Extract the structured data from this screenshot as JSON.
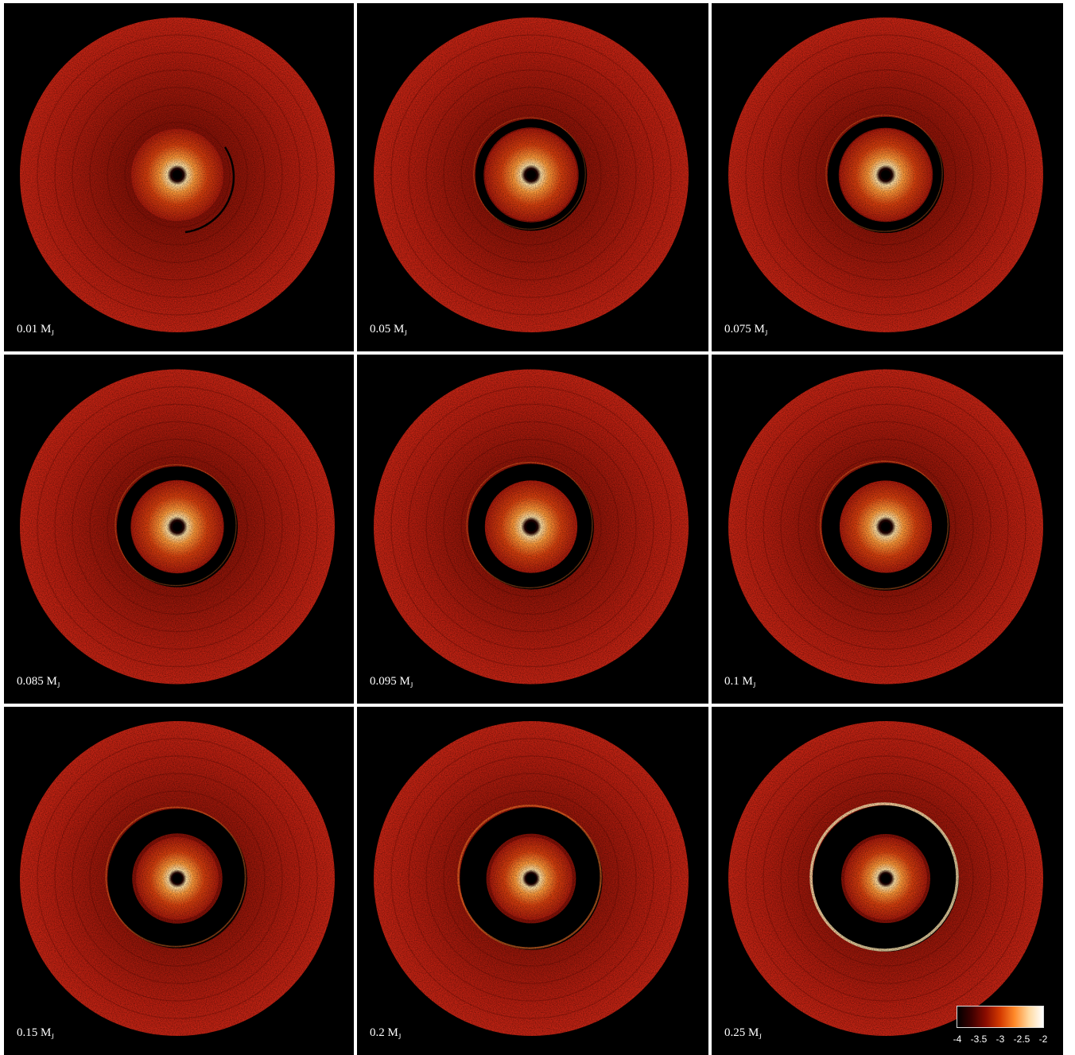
{
  "panels": [
    {
      "mass": "0.01",
      "unit": "M",
      "sub": "J",
      "gap": "none",
      "gap_level": 0.0,
      "rim_level": 0.0
    },
    {
      "mass": "0.05",
      "unit": "M",
      "sub": "J",
      "gap": "thin",
      "gap_level": 0.25,
      "rim_level": 0.05
    },
    {
      "mass": "0.075",
      "unit": "M",
      "sub": "J",
      "gap": "thin",
      "gap_level": 0.35,
      "rim_level": 0.1
    },
    {
      "mass": "0.085",
      "unit": "M",
      "sub": "J",
      "gap": "partial",
      "gap_level": 0.45,
      "rim_level": 0.1
    },
    {
      "mass": "0.095",
      "unit": "M",
      "sub": "J",
      "gap": "partial",
      "gap_level": 0.55,
      "rim_level": 0.15
    },
    {
      "mass": "0.1",
      "unit": "M",
      "sub": "J",
      "gap": "partial",
      "gap_level": 0.6,
      "rim_level": 0.2
    },
    {
      "mass": "0.15",
      "unit": "M",
      "sub": "J",
      "gap": "open",
      "gap_level": 0.85,
      "rim_level": 0.3
    },
    {
      "mass": "0.2",
      "unit": "M",
      "sub": "J",
      "gap": "open",
      "gap_level": 0.92,
      "rim_level": 0.55
    },
    {
      "mass": "0.25",
      "unit": "M",
      "sub": "J",
      "gap": "open",
      "gap_level": 1.0,
      "rim_level": 1.0
    }
  ],
  "colorbar": {
    "ticks": [
      "-4",
      "-3.5",
      "-3",
      "-2.5",
      "-2"
    ],
    "range": [
      -4,
      -2
    ],
    "colors": [
      "#000000",
      "#3d0000",
      "#8a0c00",
      "#d43a00",
      "#ff8a2a",
      "#ffd9a0",
      "#ffffff"
    ]
  },
  "colors": {
    "background": "#000000",
    "disc": "#b81e10",
    "disc_dark": "#6a0a05",
    "inner_bright": "#ff9a3a",
    "separator": "#ffffff"
  }
}
